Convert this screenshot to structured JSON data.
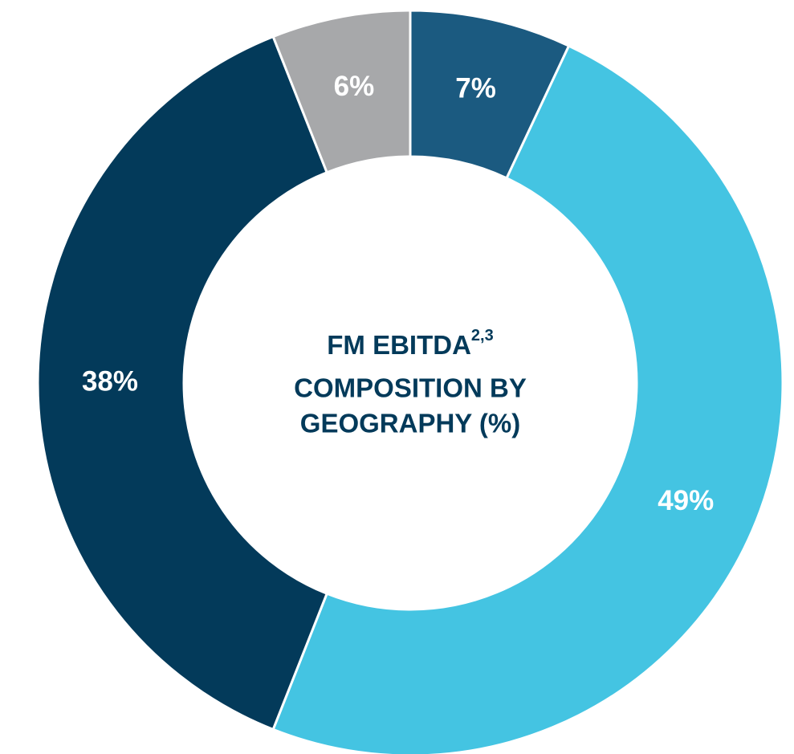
{
  "chart_data": {
    "type": "donut",
    "title_lines": [
      "FM EBITDA",
      "COMPOSITION BY",
      "GEOGRAPHY (%)"
    ],
    "title_superscript": "2,3",
    "values": [
      7,
      49,
      38,
      6
    ],
    "value_labels": [
      "7%",
      "49%",
      "38%",
      "6%"
    ],
    "colors": [
      "#1b5a80",
      "#44c4e2",
      "#033a5a",
      "#a7a8aa"
    ]
  }
}
